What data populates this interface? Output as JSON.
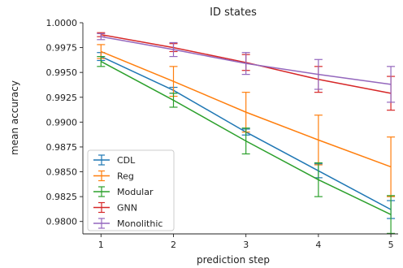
{
  "chart_data": {
    "type": "line",
    "title": "ID states",
    "xlabel": "prediction step",
    "ylabel": "mean accuracy",
    "x": [
      1,
      2,
      3,
      4,
      5
    ],
    "xlim": [
      0.75,
      5.1
    ],
    "ylim": [
      0.97875,
      1.0
    ],
    "xticks": [
      1,
      2,
      3,
      4,
      5
    ],
    "yticks": [
      "0.9800",
      "0.9825",
      "0.9850",
      "0.9875",
      "0.9900",
      "0.9925",
      "0.9950",
      "0.9975",
      "1.0000"
    ],
    "grid": false,
    "legend_position": "lower-left",
    "series": [
      {
        "name": "CDL",
        "color": "#1f77b4",
        "values": [
          0.9966,
          0.9932,
          0.989,
          0.9851,
          0.9812
        ],
        "errors": [
          0.0004,
          0.0003,
          0.0003,
          0.0007,
          0.0009
        ]
      },
      {
        "name": "Reg",
        "color": "#ff7f0e",
        "values": [
          0.9971,
          0.9941,
          0.991,
          0.9882,
          0.9855
        ],
        "errors": [
          0.0007,
          0.0015,
          0.002,
          0.0025,
          0.003
        ]
      },
      {
        "name": "Modular",
        "color": "#2ca02c",
        "values": [
          0.9961,
          0.9922,
          0.9881,
          0.9842,
          0.9807
        ],
        "errors": [
          0.0005,
          0.0007,
          0.0013,
          0.0017,
          0.0019
        ]
      },
      {
        "name": "GNN",
        "color": "#d62728",
        "values": [
          0.9988,
          0.9975,
          0.996,
          0.9943,
          0.9929
        ],
        "errors": [
          0.0002,
          0.0004,
          0.0008,
          0.0013,
          0.0017
        ]
      },
      {
        "name": "Monolithic",
        "color": "#9467bd",
        "values": [
          0.9986,
          0.9973,
          0.9959,
          0.9948,
          0.9938
        ],
        "errors": [
          0.0003,
          0.0007,
          0.0011,
          0.0015,
          0.0018
        ]
      }
    ]
  }
}
